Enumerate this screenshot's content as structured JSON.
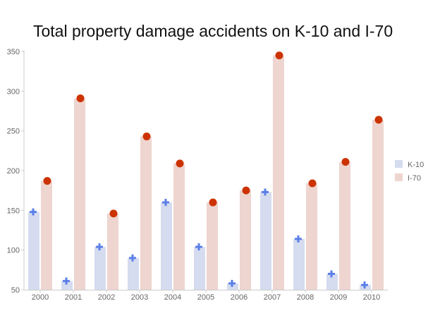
{
  "chart_data": {
    "type": "bar",
    "title": "Total property damage accidents on K-10 and I-70",
    "xlabel": "",
    "ylabel": "",
    "categories": [
      "2000",
      "2001",
      "2002",
      "2003",
      "2004",
      "2005",
      "2006",
      "2007",
      "2008",
      "2009",
      "2010"
    ],
    "series": [
      {
        "name": "K-10",
        "values": [
          148,
          61,
          104,
          90,
          160,
          104,
          58,
          173,
          114,
          70,
          56
        ],
        "bar_color": "#d5dcef",
        "marker": "plus",
        "marker_color": "#5b7fe8"
      },
      {
        "name": "I-70",
        "values": [
          187,
          291,
          146,
          243,
          209,
          160,
          175,
          345,
          184,
          211,
          264
        ],
        "bar_color": "#eed5cf",
        "marker": "circle",
        "marker_color": "#cc3300"
      }
    ],
    "ylim": [
      50,
      350
    ],
    "yticks": [
      50,
      100,
      150,
      200,
      250,
      300,
      350
    ],
    "grid": false,
    "legend_position": "right"
  }
}
